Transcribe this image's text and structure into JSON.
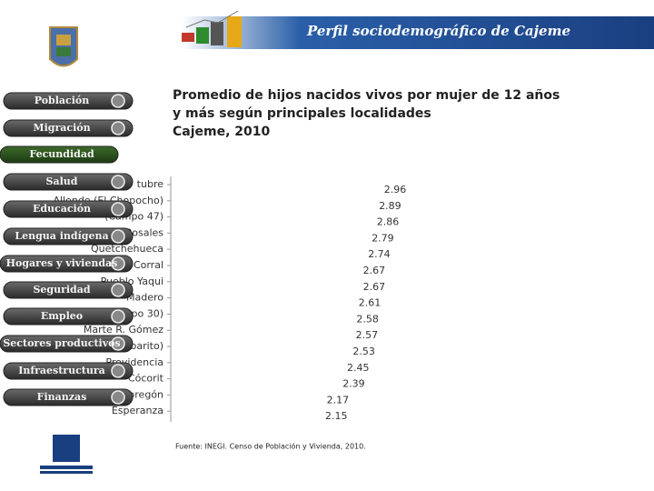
{
  "header": {
    "title": "Perfil sociodemográfico de Cajeme"
  },
  "menu": [
    "Población",
    "Migración",
    "Fecundidad",
    "Salud",
    "Educación",
    "Lengua indígena",
    "Hogares y viviendas",
    "Seguridad",
    "Empleo",
    "Sectores productivos",
    "Infraestructura",
    "Finanzas"
  ],
  "chart_data": {
    "type": "bar",
    "orientation": "horizontal",
    "title": [
      "Promedio de hijos nacidos vivos por mujer de 12 años",
      "y más según principales localidades",
      "Cajeme, 2010"
    ],
    "categories": [
      "tubre",
      "Allende (El Chopocho)",
      "(Campo 47)",
      "Rosales",
      "Quetchehueca",
      "Corral",
      "Pueblo Yaqui",
      "Madero",
      "(Campo 30)",
      "Marte R. Gómez",
      "(Tobarito)",
      "Providencia",
      "Cócorit",
      "Obregón",
      "Esperanza"
    ],
    "values": [
      2.96,
      2.89,
      2.86,
      2.79,
      2.74,
      2.67,
      2.67,
      2.61,
      2.58,
      2.57,
      2.53,
      2.45,
      2.39,
      2.17,
      2.15
    ],
    "color": "#ffffff",
    "xlim": [
      0,
      3
    ],
    "source": "Fuente: INEGI. Censo de Población y Vivienda, 2010."
  }
}
